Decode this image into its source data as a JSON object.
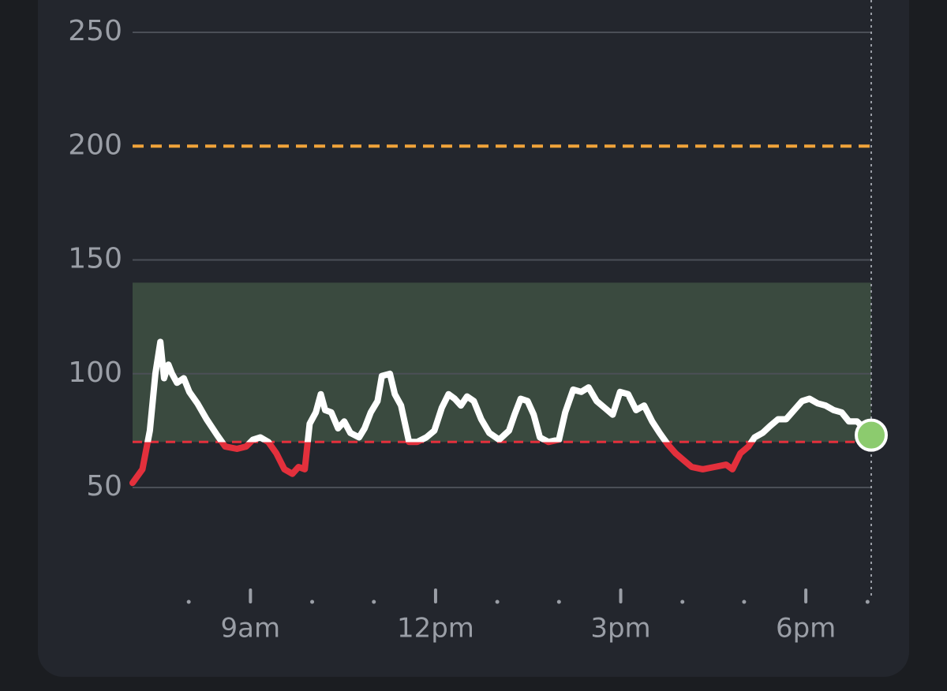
{
  "chart_data": {
    "type": "line",
    "x": [
      7.09,
      7.25,
      7.37,
      7.46,
      7.54,
      7.6,
      7.67,
      7.73,
      7.81,
      7.92,
      8.01,
      8.14,
      8.29,
      8.46,
      8.59,
      8.78,
      8.93,
      9.04,
      9.16,
      9.29,
      9.42,
      9.55,
      9.68,
      9.78,
      9.88,
      9.96,
      10.06,
      10.14,
      10.21,
      10.31,
      10.42,
      10.52,
      10.62,
      10.76,
      10.85,
      10.95,
      11.06,
      11.13,
      11.26,
      11.34,
      11.44,
      11.57,
      11.7,
      11.85,
      11.98,
      12.1,
      12.21,
      12.31,
      12.41,
      12.51,
      12.62,
      12.74,
      12.87,
      13.03,
      13.19,
      13.28,
      13.38,
      13.49,
      13.59,
      13.69,
      13.83,
      14.0,
      14.1,
      14.23,
      14.36,
      14.48,
      14.61,
      14.74,
      14.87,
      14.99,
      15.12,
      15.25,
      15.38,
      15.51,
      15.63,
      15.76,
      15.89,
      16.02,
      16.15,
      16.33,
      16.52,
      16.71,
      16.81,
      16.94,
      17.07,
      17.17,
      17.3,
      17.42,
      17.55,
      17.68,
      17.81,
      17.94,
      18.06,
      18.19,
      18.32,
      18.45,
      18.58,
      18.7,
      18.83,
      19.06
    ],
    "values": [
      52,
      58,
      75,
      100,
      114,
      98,
      104,
      100,
      96,
      98,
      92,
      87,
      80,
      73,
      68,
      67,
      68,
      71,
      72,
      70,
      65,
      58,
      56,
      59,
      58,
      78,
      83,
      91,
      84,
      83,
      76,
      79,
      74,
      72,
      76,
      83,
      88,
      99,
      100,
      91,
      86,
      70,
      70,
      72,
      75,
      85,
      91,
      89,
      86,
      90,
      88,
      80,
      74,
      71,
      75,
      82,
      89,
      88,
      82,
      72,
      70,
      71,
      83,
      93,
      92,
      94,
      88,
      85,
      82,
      92,
      91,
      84,
      86,
      79,
      74,
      69,
      65,
      62,
      59,
      58,
      59,
      60,
      58,
      65,
      68,
      72,
      74,
      77,
      80,
      80,
      84,
      88,
      89,
      87,
      86,
      84,
      83,
      79,
      79,
      73
    ],
    "color": "#ffffff",
    "low_color": "#e3303c",
    "current_point_color": "#8ccb6e",
    "target_range": [
      70,
      140
    ],
    "target_color": "#3a4a3f",
    "low_threshold": 70,
    "high_threshold": 200,
    "high_color": "#f0a33a",
    "xlim": [
      7.09,
      19.06
    ],
    "xticks": [
      {
        "value": 9,
        "label": "9am"
      },
      {
        "value": 12,
        "label": "12pm"
      },
      {
        "value": 15,
        "label": "3pm"
      },
      {
        "value": 18,
        "label": "6pm"
      }
    ],
    "minor_xticks": [
      8,
      10,
      11,
      13,
      14,
      16,
      17,
      19
    ],
    "ylim": [
      50,
      250
    ],
    "yticks": [
      50,
      100,
      150,
      200,
      250
    ],
    "grid": true
  }
}
